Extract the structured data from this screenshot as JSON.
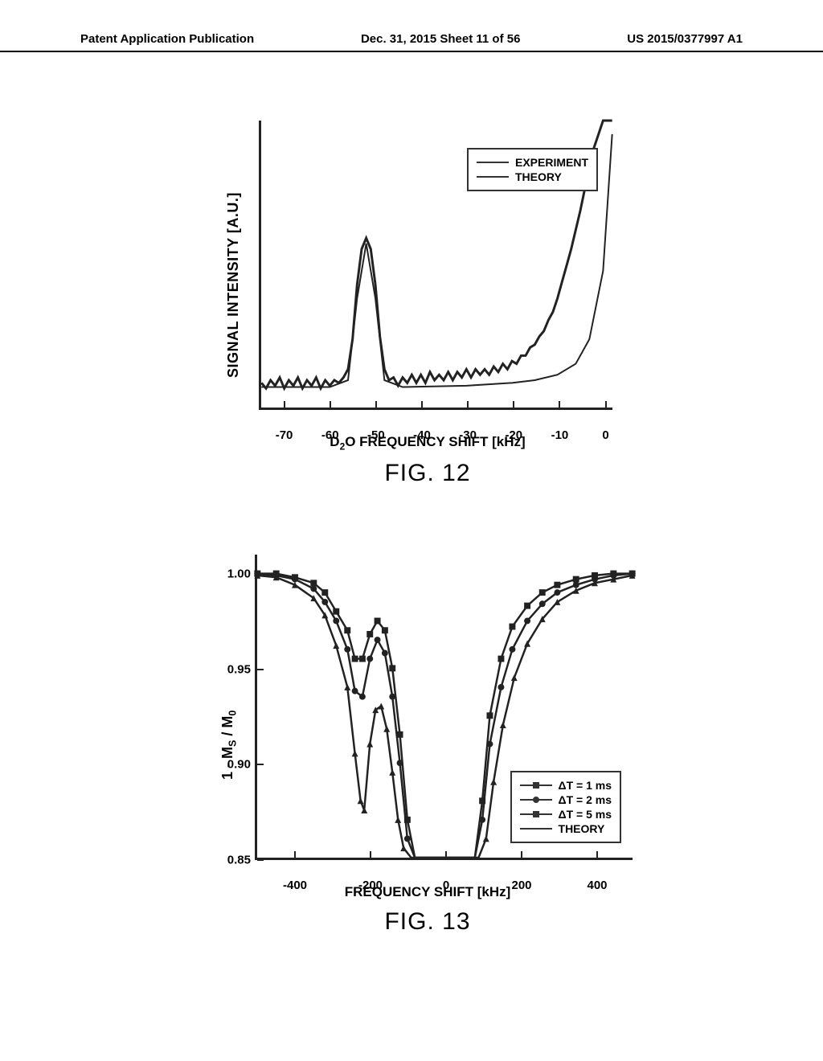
{
  "header": {
    "left": "Patent Application Publication",
    "center": "Dec. 31, 2015  Sheet 11 of 56",
    "right": "US 2015/0377997 A1"
  },
  "fig12": {
    "type": "line",
    "caption": "FIG. 12",
    "ylabel": "SIGNAL INTENSITY [A.U.]",
    "xlabel": "D₂O FREQUENCY SHIFT [kHz]",
    "xlim": [
      -75,
      2
    ],
    "ylim": [
      0,
      1.05
    ],
    "xticks": [
      -70,
      -60,
      -50,
      -40,
      -30,
      -20,
      -10,
      0
    ],
    "background_color": "#ffffff",
    "axis_color": "#222222",
    "line_width_main": 3,
    "line_width_theory": 2,
    "legend": {
      "position_top_right": true,
      "items": [
        {
          "label": "EXPERIMENT",
          "style": "line"
        },
        {
          "label": "THEORY",
          "style": "line"
        }
      ]
    },
    "experiment_noise_amp": 0.025,
    "peak_center_khz": -52,
    "peak_height": 0.62,
    "baseline": 0.08,
    "rise_start_khz": -20,
    "series_experiment": [
      [
        -75,
        0.09
      ],
      [
        -74,
        0.07
      ],
      [
        -73,
        0.1
      ],
      [
        -72,
        0.08
      ],
      [
        -71,
        0.11
      ],
      [
        -70,
        0.07
      ],
      [
        -69,
        0.1
      ],
      [
        -68,
        0.08
      ],
      [
        -67,
        0.11
      ],
      [
        -66,
        0.07
      ],
      [
        -65,
        0.1
      ],
      [
        -64,
        0.08
      ],
      [
        -63,
        0.11
      ],
      [
        -62,
        0.07
      ],
      [
        -61,
        0.1
      ],
      [
        -60,
        0.08
      ],
      [
        -59,
        0.1
      ],
      [
        -58,
        0.09
      ],
      [
        -57,
        0.11
      ],
      [
        -56,
        0.14
      ],
      [
        -55,
        0.25
      ],
      [
        -54,
        0.45
      ],
      [
        -53,
        0.58
      ],
      [
        -52,
        0.62
      ],
      [
        -51,
        0.58
      ],
      [
        -50,
        0.45
      ],
      [
        -49,
        0.26
      ],
      [
        -48,
        0.14
      ],
      [
        -47,
        0.1
      ],
      [
        -46,
        0.11
      ],
      [
        -45,
        0.08
      ],
      [
        -44,
        0.11
      ],
      [
        -43,
        0.09
      ],
      [
        -42,
        0.12
      ],
      [
        -41,
        0.09
      ],
      [
        -40,
        0.12
      ],
      [
        -39,
        0.09
      ],
      [
        -38,
        0.13
      ],
      [
        -37,
        0.1
      ],
      [
        -36,
        0.12
      ],
      [
        -35,
        0.1
      ],
      [
        -34,
        0.13
      ],
      [
        -33,
        0.1
      ],
      [
        -32,
        0.13
      ],
      [
        -31,
        0.11
      ],
      [
        -30,
        0.14
      ],
      [
        -29,
        0.11
      ],
      [
        -28,
        0.14
      ],
      [
        -27,
        0.12
      ],
      [
        -26,
        0.14
      ],
      [
        -25,
        0.12
      ],
      [
        -24,
        0.15
      ],
      [
        -23,
        0.13
      ],
      [
        -22,
        0.16
      ],
      [
        -21,
        0.14
      ],
      [
        -20,
        0.17
      ],
      [
        -19,
        0.16
      ],
      [
        -18,
        0.19
      ],
      [
        -17,
        0.19
      ],
      [
        -16,
        0.22
      ],
      [
        -15,
        0.23
      ],
      [
        -14,
        0.26
      ],
      [
        -13,
        0.28
      ],
      [
        -12,
        0.32
      ],
      [
        -11,
        0.35
      ],
      [
        -10,
        0.4
      ],
      [
        -9,
        0.46
      ],
      [
        -8,
        0.52
      ],
      [
        -7,
        0.58
      ],
      [
        -6,
        0.65
      ],
      [
        -5,
        0.72
      ],
      [
        -4,
        0.8
      ],
      [
        -3,
        0.88
      ],
      [
        -2,
        0.95
      ],
      [
        -1,
        1.0
      ],
      [
        0,
        1.05
      ],
      [
        1,
        1.05
      ],
      [
        2,
        1.05
      ]
    ],
    "series_theory": [
      [
        -75,
        0.075
      ],
      [
        -60,
        0.075
      ],
      [
        -56,
        0.1
      ],
      [
        -54,
        0.4
      ],
      [
        -52,
        0.6
      ],
      [
        -50,
        0.4
      ],
      [
        -48,
        0.1
      ],
      [
        -44,
        0.075
      ],
      [
        -30,
        0.08
      ],
      [
        -20,
        0.09
      ],
      [
        -15,
        0.1
      ],
      [
        -10,
        0.12
      ],
      [
        -6,
        0.16
      ],
      [
        -3,
        0.25
      ],
      [
        0,
        0.5
      ],
      [
        2,
        1.0
      ]
    ]
  },
  "fig13": {
    "type": "line-with-markers",
    "caption": "FIG. 13",
    "ylabel": "1 - Ms / M0",
    "xlabel": "FREQUENCY SHIFT [kHz]",
    "xlim": [
      -500,
      500
    ],
    "ylim": [
      0.85,
      1.01
    ],
    "xticks": [
      -400,
      -200,
      0,
      200,
      400
    ],
    "yticks": [
      0.85,
      0.9,
      0.95,
      1.0
    ],
    "background_color": "#ffffff",
    "axis_color": "#222222",
    "line_width": 2.5,
    "marker_size": 4,
    "legend": {
      "position": "bottom-right",
      "items": [
        {
          "label": "ΔT = 1 ms",
          "marker": "square"
        },
        {
          "label": "ΔT = 2 ms",
          "marker": "circle"
        },
        {
          "label": "ΔT = 5 ms",
          "marker": "triangle"
        },
        {
          "label": "THEORY",
          "marker": "none"
        }
      ]
    },
    "series": {
      "dt1": [
        [
          -500,
          1.0
        ],
        [
          -450,
          1.0
        ],
        [
          -400,
          0.998
        ],
        [
          -350,
          0.995
        ],
        [
          -320,
          0.99
        ],
        [
          -290,
          0.98
        ],
        [
          -260,
          0.97
        ],
        [
          -240,
          0.955
        ],
        [
          -220,
          0.955
        ],
        [
          -200,
          0.968
        ],
        [
          -180,
          0.975
        ],
        [
          -160,
          0.97
        ],
        [
          -140,
          0.95
        ],
        [
          -120,
          0.915
        ],
        [
          -100,
          0.87
        ],
        [
          -80,
          0.85
        ],
        [
          80,
          0.85
        ],
        [
          100,
          0.88
        ],
        [
          120,
          0.925
        ],
        [
          150,
          0.955
        ],
        [
          180,
          0.972
        ],
        [
          220,
          0.983
        ],
        [
          260,
          0.99
        ],
        [
          300,
          0.994
        ],
        [
          350,
          0.997
        ],
        [
          400,
          0.999
        ],
        [
          450,
          1.0
        ],
        [
          500,
          1.0
        ]
      ],
      "dt2": [
        [
          -500,
          1.0
        ],
        [
          -450,
          0.999
        ],
        [
          -400,
          0.997
        ],
        [
          -350,
          0.992
        ],
        [
          -320,
          0.985
        ],
        [
          -290,
          0.975
        ],
        [
          -260,
          0.96
        ],
        [
          -240,
          0.938
        ],
        [
          -220,
          0.935
        ],
        [
          -200,
          0.955
        ],
        [
          -180,
          0.965
        ],
        [
          -160,
          0.958
        ],
        [
          -140,
          0.935
        ],
        [
          -120,
          0.9
        ],
        [
          -100,
          0.86
        ],
        [
          -80,
          0.85
        ],
        [
          80,
          0.85
        ],
        [
          100,
          0.87
        ],
        [
          120,
          0.91
        ],
        [
          150,
          0.94
        ],
        [
          180,
          0.96
        ],
        [
          220,
          0.975
        ],
        [
          260,
          0.984
        ],
        [
          300,
          0.99
        ],
        [
          350,
          0.994
        ],
        [
          400,
          0.997
        ],
        [
          450,
          0.999
        ],
        [
          500,
          1.0
        ]
      ],
      "dt5": [
        [
          -500,
          0.999
        ],
        [
          -450,
          0.998
        ],
        [
          -400,
          0.994
        ],
        [
          -350,
          0.987
        ],
        [
          -320,
          0.978
        ],
        [
          -290,
          0.962
        ],
        [
          -260,
          0.94
        ],
        [
          -240,
          0.905
        ],
        [
          -225,
          0.88
        ],
        [
          -215,
          0.875
        ],
        [
          -200,
          0.91
        ],
        [
          -185,
          0.928
        ],
        [
          -170,
          0.93
        ],
        [
          -155,
          0.918
        ],
        [
          -140,
          0.895
        ],
        [
          -125,
          0.87
        ],
        [
          -110,
          0.855
        ],
        [
          -90,
          0.85
        ],
        [
          90,
          0.85
        ],
        [
          110,
          0.86
        ],
        [
          130,
          0.89
        ],
        [
          155,
          0.92
        ],
        [
          185,
          0.945
        ],
        [
          220,
          0.963
        ],
        [
          260,
          0.976
        ],
        [
          300,
          0.985
        ],
        [
          350,
          0.991
        ],
        [
          400,
          0.995
        ],
        [
          450,
          0.997
        ],
        [
          500,
          0.999
        ]
      ]
    },
    "markers_x_step": 20
  }
}
